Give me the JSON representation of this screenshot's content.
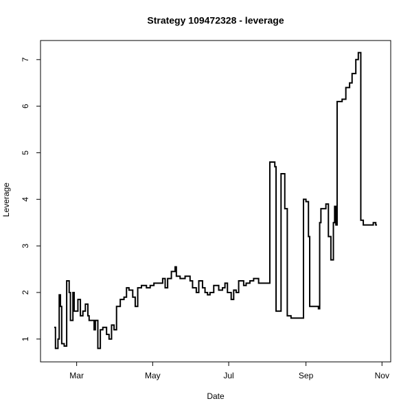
{
  "chart_data": {
    "type": "line",
    "title": "Strategy 109472328 - leverage",
    "x_label": "Date",
    "y_label": "Leverage",
    "drawstyle": "steps-post",
    "grid": false,
    "xlim": [
      31,
      312
    ],
    "ylim": [
      0.51,
      7.41
    ],
    "xticks": [
      {
        "value": 60,
        "label": "Mar"
      },
      {
        "value": 121,
        "label": "May"
      },
      {
        "value": 182,
        "label": "Jul"
      },
      {
        "value": 244,
        "label": "Sep"
      },
      {
        "value": 305,
        "label": "Nov"
      }
    ],
    "yticks": [
      1,
      2,
      3,
      4,
      5,
      6,
      7
    ],
    "series": [
      {
        "name": "leverage",
        "color": "#000000",
        "x": [
          42,
          43,
          45,
          46,
          47,
          48,
          50,
          52,
          54,
          55,
          57,
          58,
          61,
          63,
          65,
          67,
          69,
          70,
          74,
          75,
          77,
          79,
          81,
          84,
          86,
          88,
          90,
          92,
          95,
          98,
          100,
          102,
          105,
          107,
          109,
          112,
          116,
          119,
          122,
          125,
          129,
          131,
          133,
          136,
          139,
          140,
          143,
          147,
          151,
          153,
          156,
          158,
          161,
          163,
          165,
          167,
          170,
          174,
          177,
          179,
          181,
          184,
          186,
          188,
          190,
          194,
          196,
          199,
          202,
          206,
          210,
          214,
          215,
          219,
          220,
          224,
          227,
          229,
          232,
          238,
          241,
          242,
          244,
          246,
          247,
          251,
          254,
          255,
          256,
          260,
          262,
          264,
          266,
          267,
          268,
          269,
          273,
          276,
          279,
          281,
          284,
          286,
          288,
          290,
          296,
          298,
          300,
          301
        ],
        "values": [
          1.25,
          0.8,
          1.0,
          1.95,
          1.7,
          0.9,
          0.85,
          2.25,
          2.0,
          1.4,
          2.0,
          1.6,
          1.85,
          1.5,
          1.6,
          1.75,
          1.5,
          1.4,
          1.2,
          1.4,
          0.8,
          1.2,
          1.25,
          1.1,
          1.0,
          1.3,
          1.2,
          1.7,
          1.85,
          1.9,
          2.1,
          2.05,
          1.9,
          1.7,
          2.1,
          2.15,
          2.1,
          2.15,
          2.2,
          2.2,
          2.3,
          2.1,
          2.3,
          2.45,
          2.55,
          2.35,
          2.3,
          2.35,
          2.25,
          2.1,
          2.0,
          2.25,
          2.1,
          2.0,
          1.95,
          2.0,
          2.15,
          2.05,
          2.1,
          2.2,
          2.0,
          1.85,
          2.05,
          2.0,
          2.25,
          2.15,
          2.2,
          2.25,
          2.3,
          2.2,
          2.2,
          2.2,
          4.8,
          4.7,
          1.6,
          4.55,
          3.8,
          1.5,
          1.45,
          1.45,
          1.45,
          4.0,
          3.95,
          3.2,
          1.7,
          1.7,
          1.65,
          3.5,
          3.8,
          3.9,
          3.2,
          2.7,
          3.5,
          3.85,
          3.45,
          6.1,
          6.15,
          6.4,
          6.5,
          6.7,
          7.0,
          7.15,
          3.55,
          3.45,
          3.45,
          3.5,
          3.45,
          3.45
        ]
      }
    ]
  }
}
